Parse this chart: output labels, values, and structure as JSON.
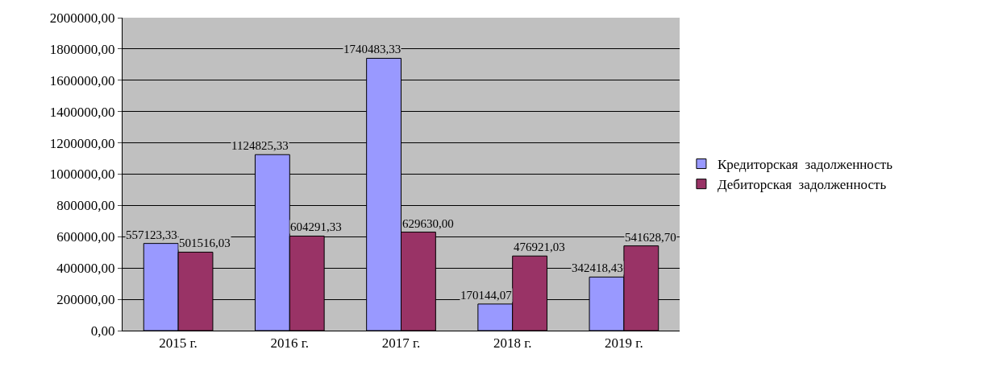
{
  "chart_data": {
    "type": "bar",
    "categories": [
      "2015 г.",
      "2016 г.",
      "2017 г.",
      "2018 г.",
      "2019 г."
    ],
    "series": [
      {
        "name": "Кредиторская  задолженность",
        "color": "#9999ff",
        "values": [
          557123.33,
          1124825.33,
          1740483.33,
          170144.07,
          342418.43
        ],
        "value_labels": [
          "557123,33",
          "1124825,33",
          "1740483,33",
          "170144,07",
          "342418,43"
        ]
      },
      {
        "name": "Дебиторская  задолженность",
        "color": "#993366",
        "values": [
          501516.03,
          604291.33,
          629630.0,
          476921.03,
          541628.7
        ],
        "value_labels": [
          "501516,03",
          "604291,33",
          "629630,00",
          "476921,03",
          "541628,70"
        ]
      }
    ],
    "ylim": [
      0,
      2000000
    ],
    "yticks": [
      {
        "value": 0,
        "label": "0,00"
      },
      {
        "value": 200000,
        "label": "200000,00"
      },
      {
        "value": 400000,
        "label": "400000,00"
      },
      {
        "value": 600000,
        "label": "600000,00"
      },
      {
        "value": 800000,
        "label": "800000,00"
      },
      {
        "value": 1000000,
        "label": "1000000,00"
      },
      {
        "value": 1200000,
        "label": "1200000,00"
      },
      {
        "value": 1400000,
        "label": "1400000,00"
      },
      {
        "value": 1600000,
        "label": "1600000,00"
      },
      {
        "value": 1800000,
        "label": "1800000,00"
      },
      {
        "value": 2000000,
        "label": "2000000,00"
      }
    ],
    "grid": "y",
    "legend": "right"
  }
}
